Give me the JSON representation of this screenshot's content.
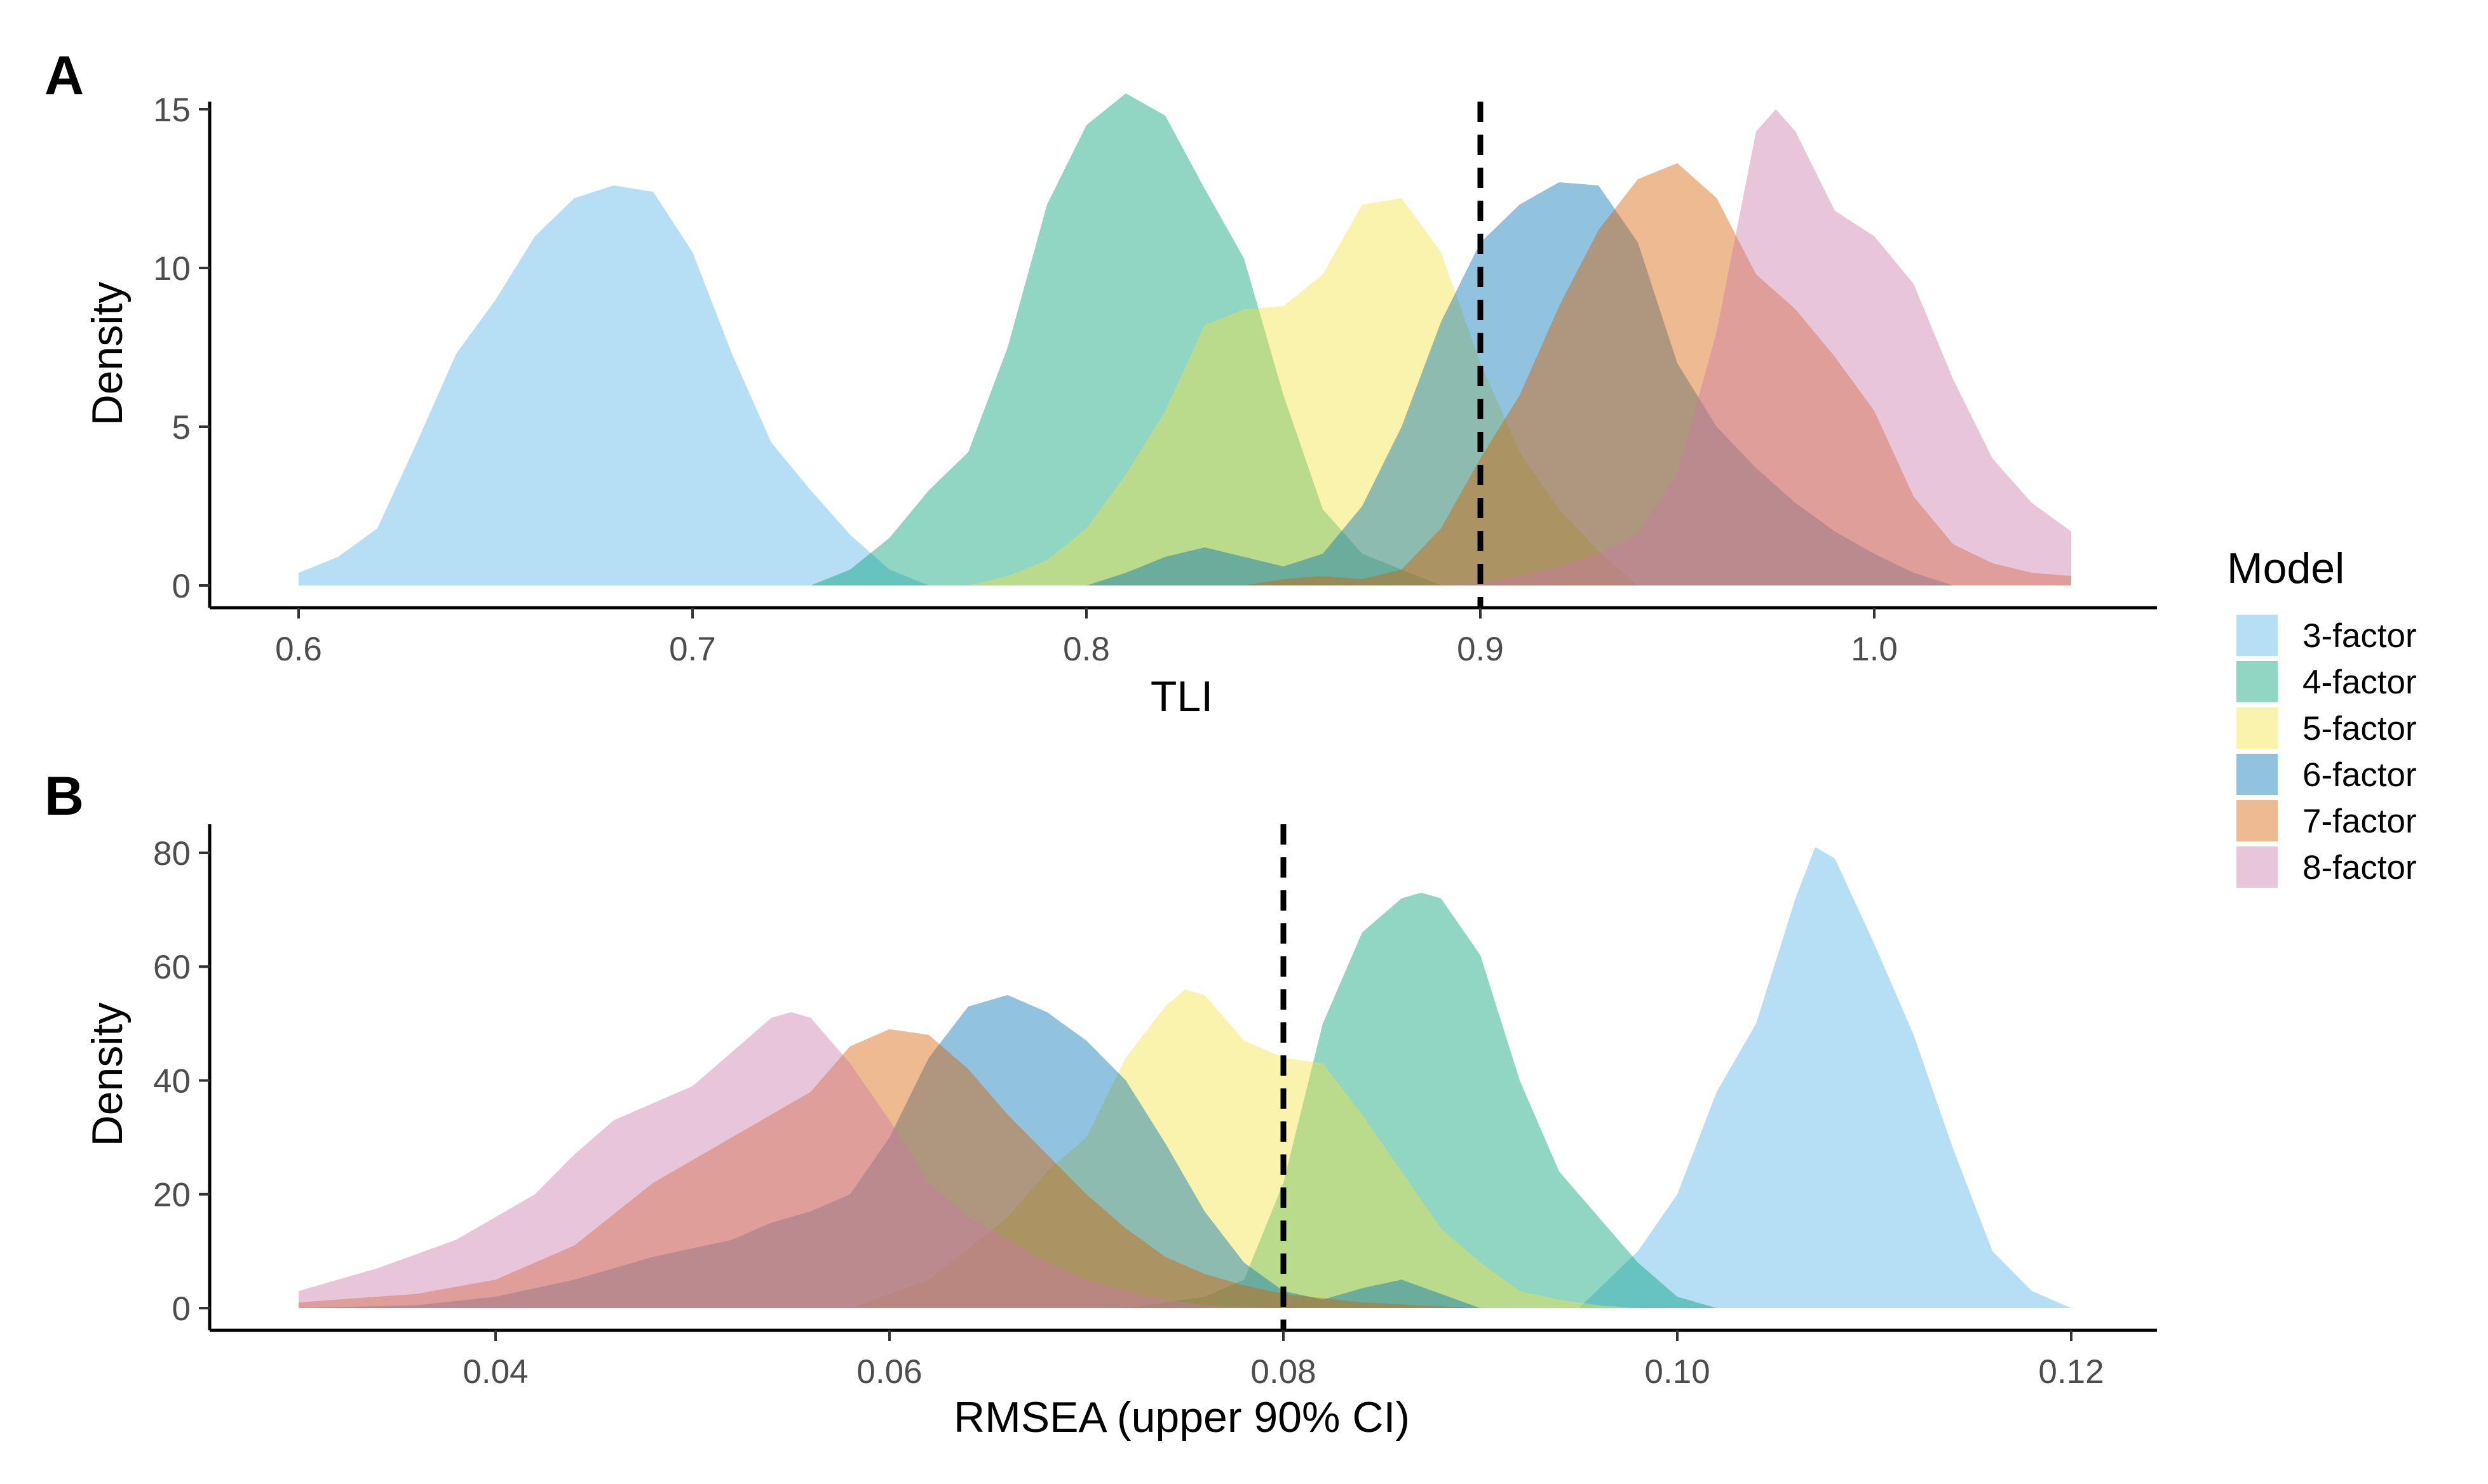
{
  "figure": {
    "legend": {
      "title": "Model",
      "placement": "right"
    }
  },
  "series_colors": {
    "3-factor": "#56B4E9",
    "4-factor": "#009E73",
    "5-factor": "#F0E442",
    "6-factor": "#0072B2",
    "7-factor": "#D55E00",
    "8-factor": "#CC79A7"
  },
  "fill_opacity": 0.43,
  "chart_data": [
    {
      "type": "area",
      "panel_label": "A",
      "title": "",
      "xlabel": "TLI",
      "ylabel": "Density",
      "xlim": [
        0.6,
        1.05
      ],
      "ylim": [
        0,
        15.5
      ],
      "x_ticks": [
        0.6,
        0.7,
        0.8,
        0.9,
        1.0
      ],
      "x_tick_labels": [
        "0.6",
        "0.7",
        "0.8",
        "0.9",
        "1.0"
      ],
      "y_ticks": [
        0,
        5,
        10,
        15
      ],
      "y_tick_labels": [
        "0",
        "5",
        "10",
        "15"
      ],
      "reference_line": {
        "x": 0.9,
        "style": "dashed"
      },
      "grid": false,
      "series": [
        {
          "name": "3-factor",
          "x": [
            0.6,
            0.61,
            0.62,
            0.63,
            0.64,
            0.65,
            0.66,
            0.67,
            0.68,
            0.69,
            0.7,
            0.71,
            0.72,
            0.73,
            0.74,
            0.75,
            0.76
          ],
          "y": [
            0.4,
            0.9,
            1.8,
            4.5,
            7.3,
            9.0,
            11.0,
            12.2,
            12.6,
            12.4,
            10.5,
            7.3,
            4.5,
            3.0,
            1.6,
            0.5,
            0.0
          ]
        },
        {
          "name": "4-factor",
          "x": [
            0.73,
            0.74,
            0.75,
            0.76,
            0.77,
            0.78,
            0.79,
            0.8,
            0.81,
            0.82,
            0.83,
            0.84,
            0.85,
            0.86,
            0.87,
            0.88,
            0.89
          ],
          "y": [
            0.0,
            0.5,
            1.5,
            3.0,
            4.2,
            7.5,
            12.0,
            14.5,
            15.5,
            14.8,
            12.5,
            10.3,
            6.0,
            2.4,
            1.0,
            0.5,
            0.0
          ]
        },
        {
          "name": "5-factor",
          "x": [
            0.77,
            0.78,
            0.79,
            0.8,
            0.81,
            0.82,
            0.83,
            0.84,
            0.85,
            0.86,
            0.87,
            0.88,
            0.89,
            0.9,
            0.91,
            0.92,
            0.93,
            0.94
          ],
          "y": [
            0.0,
            0.3,
            0.8,
            1.8,
            3.5,
            5.5,
            8.2,
            8.7,
            8.8,
            9.8,
            12.0,
            12.2,
            10.5,
            7.0,
            4.2,
            2.4,
            1.1,
            0.0
          ]
        },
        {
          "name": "6-factor",
          "x": [
            0.78,
            0.8,
            0.81,
            0.82,
            0.83,
            0.84,
            0.85,
            0.86,
            0.87,
            0.88,
            0.89,
            0.9,
            0.91,
            0.92,
            0.93,
            0.94,
            0.95,
            0.96,
            0.97,
            0.98,
            0.99,
            1.0,
            1.01,
            1.02
          ],
          "y": [
            0.0,
            0.0,
            0.4,
            0.9,
            1.2,
            0.9,
            0.6,
            1.0,
            2.5,
            5.0,
            8.3,
            10.8,
            12.0,
            12.7,
            12.6,
            10.8,
            7.0,
            5.0,
            3.7,
            2.6,
            1.7,
            1.0,
            0.4,
            0.0
          ]
        },
        {
          "name": "7-factor",
          "x": [
            0.84,
            0.85,
            0.86,
            0.87,
            0.88,
            0.89,
            0.9,
            0.91,
            0.92,
            0.93,
            0.94,
            0.95,
            0.96,
            0.97,
            0.98,
            0.99,
            1.0,
            1.01,
            1.02,
            1.03,
            1.04,
            1.05
          ],
          "y": [
            0.0,
            0.2,
            0.3,
            0.2,
            0.5,
            1.8,
            4.0,
            6.0,
            8.8,
            11.2,
            12.8,
            13.3,
            12.2,
            9.8,
            8.7,
            7.2,
            5.5,
            2.8,
            1.3,
            0.7,
            0.4,
            0.3
          ]
        },
        {
          "name": "8-factor",
          "x": [
            0.89,
            0.9,
            0.91,
            0.92,
            0.93,
            0.94,
            0.95,
            0.96,
            0.97,
            0.975,
            0.98,
            0.99,
            1.0,
            1.01,
            1.02,
            1.03,
            1.04,
            1.05
          ],
          "y": [
            0.0,
            0.1,
            0.3,
            0.6,
            1.0,
            1.6,
            3.5,
            8.0,
            14.3,
            15.0,
            14.3,
            11.8,
            11.0,
            9.5,
            6.5,
            4.0,
            2.6,
            1.7
          ]
        }
      ]
    },
    {
      "type": "area",
      "panel_label": "B",
      "title": "",
      "xlabel": "RMSEA (upper 90% CI)",
      "ylabel": "Density",
      "xlim": [
        0.03,
        0.12
      ],
      "ylim": [
        0,
        81
      ],
      "x_ticks": [
        0.04,
        0.06,
        0.08,
        0.1,
        0.12
      ],
      "x_tick_labels": [
        "0.04",
        "0.06",
        "0.08",
        "0.10",
        "0.12"
      ],
      "y_ticks": [
        0,
        20,
        40,
        60,
        80
      ],
      "y_tick_labels": [
        "0",
        "20",
        "40",
        "60",
        "80"
      ],
      "reference_line": {
        "x": 0.08,
        "style": "dashed"
      },
      "grid": false,
      "series": [
        {
          "name": "3-factor",
          "x": [
            0.095,
            0.098,
            0.1,
            0.102,
            0.104,
            0.106,
            0.107,
            0.108,
            0.11,
            0.112,
            0.114,
            0.116,
            0.118,
            0.12
          ],
          "y": [
            0.0,
            10.0,
            20.0,
            38.0,
            50.0,
            72.0,
            81.0,
            79.0,
            64.0,
            48.0,
            28.0,
            10.0,
            3.0,
            0.0
          ]
        },
        {
          "name": "4-factor",
          "x": [
            0.072,
            0.074,
            0.076,
            0.078,
            0.08,
            0.082,
            0.084,
            0.086,
            0.087,
            0.088,
            0.09,
            0.092,
            0.094,
            0.096,
            0.098,
            0.1,
            0.102
          ],
          "y": [
            0.0,
            1.0,
            2.0,
            5.0,
            22.0,
            50.0,
            66.0,
            72.0,
            73.0,
            72.0,
            62.0,
            40.0,
            24.0,
            16.0,
            8.0,
            2.0,
            0.0
          ]
        },
        {
          "name": "5-factor",
          "x": [
            0.058,
            0.062,
            0.066,
            0.068,
            0.07,
            0.072,
            0.074,
            0.075,
            0.076,
            0.078,
            0.08,
            0.082,
            0.084,
            0.086,
            0.088,
            0.09,
            0.092,
            0.094,
            0.096,
            0.098
          ],
          "y": [
            0.0,
            5.0,
            16.0,
            24.0,
            30.0,
            44.0,
            53.0,
            56.0,
            55.0,
            47.0,
            44.0,
            43.0,
            34.0,
            24.0,
            14.0,
            8.0,
            3.0,
            1.5,
            0.5,
            0.0
          ]
        },
        {
          "name": "6-factor",
          "x": [
            0.03,
            0.036,
            0.04,
            0.044,
            0.048,
            0.052,
            0.054,
            0.056,
            0.058,
            0.06,
            0.062,
            0.064,
            0.066,
            0.068,
            0.07,
            0.072,
            0.074,
            0.076,
            0.078,
            0.08,
            0.082,
            0.084,
            0.086,
            0.088,
            0.09
          ],
          "y": [
            0.0,
            0.5,
            2.0,
            5.0,
            9.0,
            12.0,
            15.0,
            17.0,
            20.0,
            30.0,
            44.0,
            53.0,
            55.0,
            52.0,
            47.0,
            40.0,
            29.0,
            17.0,
            8.0,
            3.0,
            1.5,
            3.5,
            5.0,
            2.5,
            0.0
          ]
        },
        {
          "name": "7-factor",
          "x": [
            0.03,
            0.036,
            0.04,
            0.044,
            0.048,
            0.052,
            0.056,
            0.058,
            0.06,
            0.062,
            0.064,
            0.066,
            0.068,
            0.07,
            0.072,
            0.074,
            0.076,
            0.078,
            0.08,
            0.084,
            0.088,
            0.09
          ],
          "y": [
            1.0,
            2.5,
            5.0,
            11.0,
            22.0,
            30.0,
            38.0,
            46.0,
            49.0,
            48.0,
            42.0,
            34.0,
            27.0,
            20.0,
            14.0,
            9.0,
            6.0,
            4.0,
            2.5,
            1.0,
            0.3,
            0.0
          ]
        },
        {
          "name": "8-factor",
          "x": [
            0.03,
            0.034,
            0.038,
            0.042,
            0.044,
            0.046,
            0.048,
            0.05,
            0.052,
            0.054,
            0.055,
            0.056,
            0.058,
            0.06,
            0.062,
            0.064,
            0.066,
            0.068,
            0.07,
            0.072,
            0.074,
            0.076,
            0.08
          ],
          "y": [
            3.0,
            7.0,
            12.0,
            20.0,
            27.0,
            33.0,
            36.0,
            39.0,
            45.0,
            51.0,
            52.0,
            51.0,
            43.0,
            33.0,
            22.0,
            16.0,
            12.0,
            8.0,
            5.0,
            3.0,
            1.5,
            0.5,
            0.0
          ]
        }
      ]
    }
  ]
}
